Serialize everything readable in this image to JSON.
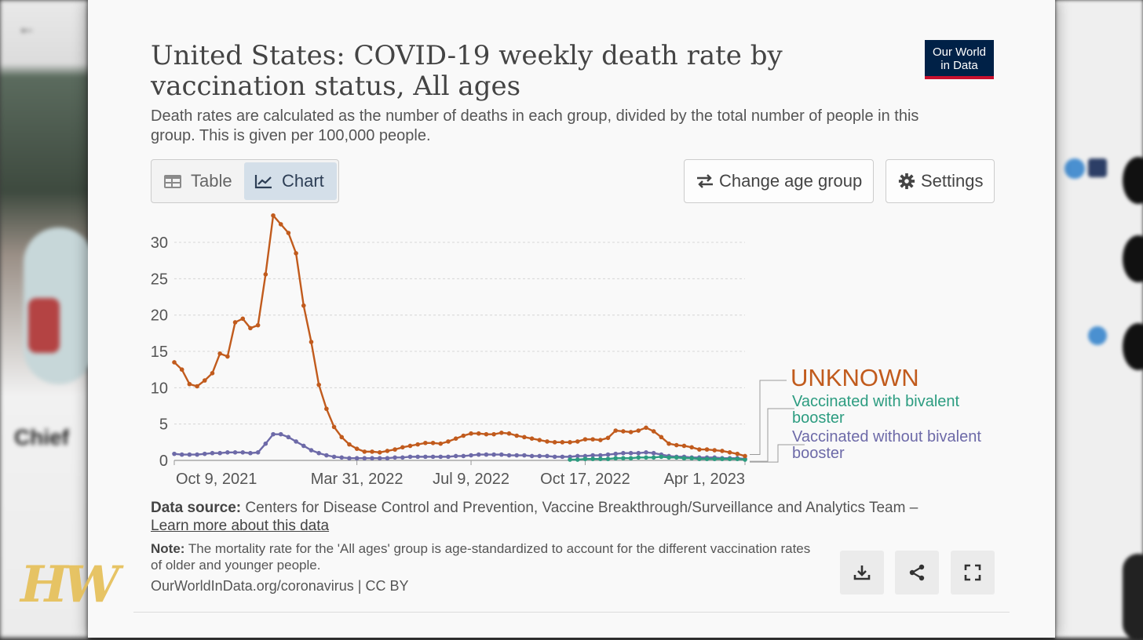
{
  "header": {
    "title": "United States: COVID-19 weekly death rate by vaccination status, All ages",
    "subtitle": "Death rates are calculated as the number of deaths in each group, divided by the total number of people in this group. This is given per 100,000 people.",
    "logo_line1": "Our World",
    "logo_line2": "in Data"
  },
  "tabs": [
    {
      "label": "Table",
      "icon": "table-icon"
    },
    {
      "label": "Chart",
      "icon": "line-chart-icon",
      "active": true
    }
  ],
  "toolbar": {
    "change_age_label": "Change age group",
    "settings_label": "Settings"
  },
  "footer": {
    "source_label": "Data source:",
    "source_text": "Centers for Disease Control and Prevention, Vaccine Breakthrough/Surveillance and Analytics Team –",
    "learn_more": "Learn more about this data",
    "note_label": "Note:",
    "note_text": "The mortality rate for the 'All ages' group is age-standardized to account for the different vaccination rates of older and younger people.",
    "url": "OurWorldInData.org/coronavirus | CC BY"
  },
  "background": {
    "profile_name": "Chief",
    "watermark": "HW"
  },
  "colors": {
    "unknown": "#c15b1d",
    "bivalent": "#2c9c80",
    "without_bivalent": "#6d6aa8",
    "active_tab": "#d4dfe9"
  },
  "chart_data": {
    "type": "line",
    "x_ticks": [
      "Oct 9, 2021",
      "Mar 31, 2022",
      "Jul 9, 2022",
      "Oct 17, 2022",
      "Apr 1, 2023"
    ],
    "y_ticks": [
      "0",
      "5",
      "10",
      "15",
      "20",
      "25",
      "30"
    ],
    "ylim": [
      0,
      34
    ],
    "grid": "horizontal dashed",
    "legend": "right, line labels",
    "series": [
      {
        "name": "UNKNOWN",
        "color": "#c15b1d",
        "values": [
          13.5,
          12.5,
          10.5,
          10.2,
          11,
          12,
          14.7,
          14.3,
          19,
          19.5,
          18.2,
          18.6,
          25.6,
          33.7,
          32.5,
          31.3,
          28.5,
          21.3,
          16.3,
          10.4,
          7.1,
          4.6,
          3.2,
          2.2,
          1.6,
          1.2,
          1.2,
          1.1,
          1.3,
          1.5,
          1.8,
          2.0,
          2.2,
          2.4,
          2.4,
          2.3,
          2.6,
          3.0,
          3.4,
          3.7,
          3.7,
          3.6,
          3.6,
          3.8,
          3.7,
          3.4,
          3.2,
          3.0,
          2.8,
          2.6,
          2.5,
          2.5,
          2.5,
          2.6,
          2.9,
          2.9,
          2.8,
          3.1,
          4.1,
          4.0,
          3.9,
          4.1,
          4.5,
          4.0,
          3.2,
          2.3,
          2.1,
          2.0,
          1.8,
          1.5,
          1.5,
          1.4,
          1.3,
          1.1,
          0.9,
          0.6
        ]
      },
      {
        "name": "Vaccinated without bivalent booster",
        "color": "#6d6aa8",
        "values": [
          0.9,
          0.8,
          0.8,
          0.8,
          0.9,
          1.0,
          1.0,
          1.1,
          1.1,
          1.1,
          1.0,
          1.1,
          2.3,
          3.6,
          3.6,
          3.2,
          2.6,
          2.0,
          1.4,
          1.0,
          0.7,
          0.5,
          0.4,
          0.3,
          0.3,
          0.3,
          0.3,
          0.3,
          0.3,
          0.4,
          0.4,
          0.5,
          0.5,
          0.5,
          0.5,
          0.5,
          0.5,
          0.6,
          0.6,
          0.7,
          0.8,
          0.8,
          0.8,
          0.8,
          0.7,
          0.7,
          0.7,
          0.6,
          0.6,
          0.6,
          0.5,
          0.5,
          0.5,
          0.6,
          0.6,
          0.7,
          0.7,
          0.8,
          0.9,
          1.0,
          1.0,
          1.0,
          1.1,
          1.0,
          0.8,
          0.6,
          0.5,
          0.5,
          0.4,
          0.4,
          0.4,
          0.4,
          0.3,
          0.3,
          0.3,
          0.2
        ]
      },
      {
        "name": "Vaccinated with bivalent booster",
        "color": "#2c9c80",
        "start_index": 52,
        "values": [
          0.1,
          0.1,
          0.2,
          0.2,
          0.2,
          0.2,
          0.3,
          0.3,
          0.3,
          0.4,
          0.4,
          0.4,
          0.5,
          0.4,
          0.4,
          0.3,
          0.3,
          0.2,
          0.2,
          0.2,
          0.2,
          0.2,
          0.2,
          0.1
        ]
      }
    ]
  },
  "legend": {
    "unknown": "UNKNOWN",
    "bivalent_1": "Vaccinated with bivalent",
    "bivalent_2": "booster",
    "without_1": "Vaccinated without bivalent",
    "without_2": "booster"
  }
}
